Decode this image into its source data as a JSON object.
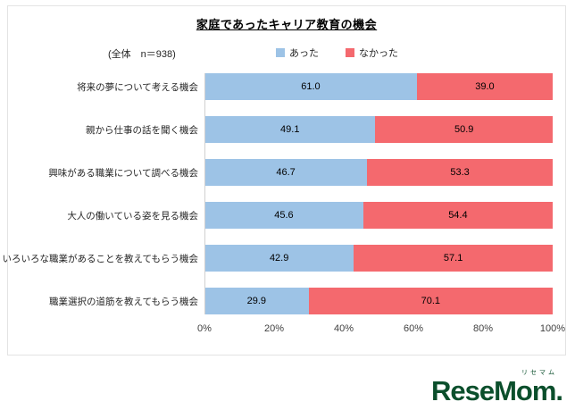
{
  "chart_data": {
    "type": "bar",
    "stacked": true,
    "orientation": "horizontal",
    "title": "家庭であったキャリア教育の機会",
    "n_label": "(全体　n＝938)",
    "categories": [
      "将来の夢について考える機会",
      "親から仕事の話を聞く機会",
      "興味がある職業について調べる機会",
      "大人の働いている姿を見る機会",
      "いろいろな職業があることを教えてもらう機会",
      "職業選択の道筋を教えてもらう機会"
    ],
    "series": [
      {
        "name": "あった",
        "color": "#9dc3e6",
        "values": [
          61.0,
          49.1,
          46.7,
          45.6,
          42.9,
          29.9
        ]
      },
      {
        "name": "なかった",
        "color": "#f4696e",
        "values": [
          39.0,
          50.9,
          53.3,
          54.4,
          57.1,
          70.1
        ]
      }
    ],
    "xlim": [
      0,
      100
    ],
    "x_ticks": [
      "0%",
      "20%",
      "40%",
      "60%",
      "80%",
      "100%"
    ],
    "grid": false,
    "legend_position": "top"
  },
  "logo": {
    "small_text": "リセマム",
    "main_text": "ReseMom."
  }
}
